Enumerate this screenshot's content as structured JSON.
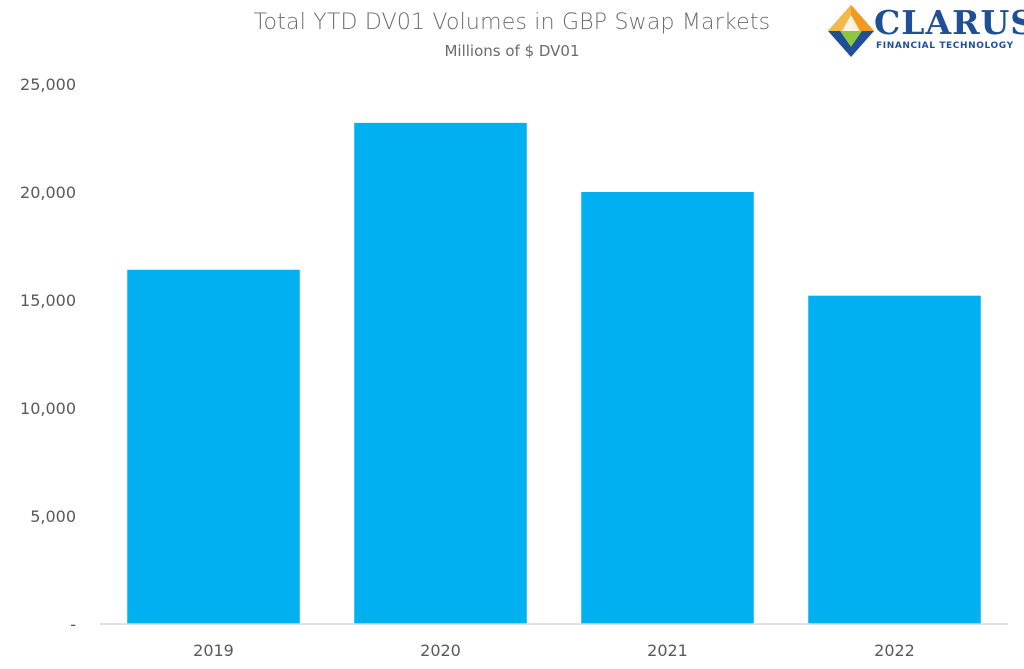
{
  "chart_data": {
    "type": "bar",
    "title": "Total YTD DV01 Volumes in GBP Swap Markets",
    "subtitle": "Millions of $ DV01",
    "categories": [
      "2019",
      "2020",
      "2021",
      "2022"
    ],
    "values": [
      16400,
      23200,
      20000,
      15200
    ],
    "ylim": [
      0,
      25000
    ],
    "y_ticks": [
      0,
      5000,
      10000,
      15000,
      20000,
      25000
    ],
    "y_tick_labels": [
      "-",
      "5,000",
      "10,000",
      "15,000",
      "20,000",
      "25,000"
    ],
    "xlabel": "",
    "ylabel": "",
    "grid": false,
    "legend": "none",
    "bar_color": "#00b0f0"
  },
  "logo": {
    "name": "CLARUS",
    "tagline": "FINANCIAL TECHNOLOGY",
    "colors": {
      "orange": "#f39a1e",
      "blue": "#1f4f96",
      "green": "#8dc63f"
    }
  }
}
